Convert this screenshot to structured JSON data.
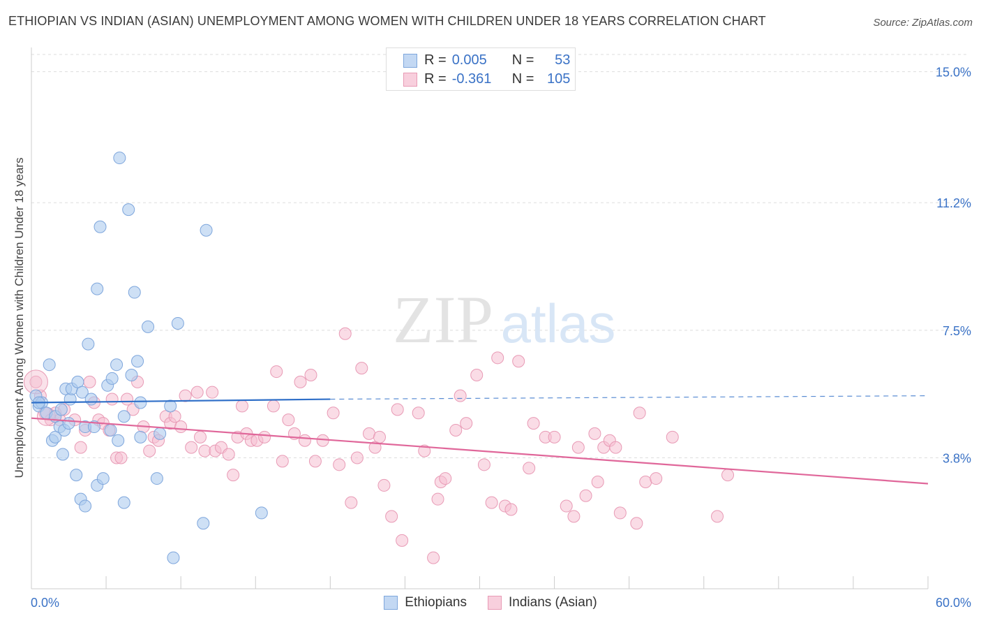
{
  "title": "ETHIOPIAN VS INDIAN (ASIAN) UNEMPLOYMENT AMONG WOMEN WITH CHILDREN UNDER 18 YEARS CORRELATION CHART",
  "source": "Source: ZipAtlas.com",
  "watermark": {
    "zip": "ZIP",
    "atlas": "atlas"
  },
  "colors": {
    "ethiopians_fill": "#aecbef",
    "ethiopians_stroke": "#7ea6dc",
    "ethiopians_line": "#2f6fc8",
    "indians_fill": "#f5bfd1",
    "indians_stroke": "#e89ab5",
    "indians_line": "#e0679a",
    "tick_label": "#3a72c6",
    "grid": "#dddddd"
  },
  "legend": {
    "rows": [
      {
        "r_label": "R =",
        "r_value": "0.005",
        "n_label": "N =",
        "n_value": "53"
      },
      {
        "r_label": "R =",
        "r_value": "-0.361",
        "n_label": "N =",
        "n_value": "105"
      }
    ]
  },
  "chart_data": {
    "type": "scatter",
    "title": "ETHIOPIAN VS INDIAN (ASIAN) UNEMPLOYMENT AMONG WOMEN WITH CHILDREN UNDER 18 YEARS CORRELATION CHART",
    "xlabel": "",
    "ylabel": "Unemployment Among Women with Children Under 18 years",
    "xlim": [
      0,
      60
    ],
    "ylim": [
      0,
      15.5
    ],
    "x_tick_labels": [
      "0.0%",
      "60.0%"
    ],
    "y_ticks": [
      3.8,
      7.5,
      11.2,
      15.0
    ],
    "y_tick_labels": [
      "3.8%",
      "7.5%",
      "11.2%",
      "15.0%"
    ],
    "grid": true,
    "legend_position": "bottom-center",
    "series": [
      {
        "name": "Ethiopians",
        "trend": {
          "x": [
            0,
            20
          ],
          "y": [
            5.4,
            5.5
          ],
          "dashed_to_x": 60,
          "dashed_to_y": 5.6
        },
        "points": [
          [
            0.3,
            5.6
          ],
          [
            0.5,
            5.3
          ],
          [
            0.7,
            5.4
          ],
          [
            1.0,
            5.1
          ],
          [
            1.2,
            6.5
          ],
          [
            1.4,
            4.3
          ],
          [
            1.6,
            4.4
          ],
          [
            1.6,
            5.0
          ],
          [
            1.9,
            4.7
          ],
          [
            2.0,
            5.2
          ],
          [
            2.1,
            3.9
          ],
          [
            2.2,
            4.6
          ],
          [
            2.3,
            5.8
          ],
          [
            2.5,
            4.8
          ],
          [
            2.6,
            5.5
          ],
          [
            2.7,
            5.8
          ],
          [
            3.0,
            3.3
          ],
          [
            3.1,
            6.0
          ],
          [
            3.3,
            2.6
          ],
          [
            3.4,
            5.7
          ],
          [
            3.6,
            2.4
          ],
          [
            3.6,
            4.7
          ],
          [
            3.8,
            7.1
          ],
          [
            4.0,
            5.5
          ],
          [
            4.2,
            4.7
          ],
          [
            4.4,
            8.7
          ],
          [
            4.6,
            10.5
          ],
          [
            4.4,
            3.0
          ],
          [
            4.8,
            3.2
          ],
          [
            5.1,
            5.9
          ],
          [
            5.3,
            4.6
          ],
          [
            5.4,
            6.1
          ],
          [
            5.7,
            6.5
          ],
          [
            5.8,
            4.3
          ],
          [
            5.9,
            12.5
          ],
          [
            6.2,
            2.5
          ],
          [
            6.2,
            5.0
          ],
          [
            6.5,
            11.0
          ],
          [
            6.7,
            6.2
          ],
          [
            6.9,
            8.6
          ],
          [
            7.1,
            6.6
          ],
          [
            7.3,
            5.4
          ],
          [
            7.3,
            4.4
          ],
          [
            7.8,
            7.6
          ],
          [
            8.4,
            3.2
          ],
          [
            8.6,
            4.5
          ],
          [
            9.3,
            5.3
          ],
          [
            9.5,
            0.9
          ],
          [
            9.8,
            7.7
          ],
          [
            11.5,
            1.9
          ],
          [
            11.7,
            10.4
          ],
          [
            15.4,
            2.2
          ],
          [
            0.5,
            5.4
          ]
        ]
      },
      {
        "name": "Indians (Asian)",
        "trend": {
          "x": [
            0,
            60
          ],
          "y": [
            4.95,
            3.05
          ]
        },
        "points": [
          [
            0.3,
            6.0
          ],
          [
            0.6,
            5.6
          ],
          [
            0.9,
            5.1
          ],
          [
            1.3,
            4.9
          ],
          [
            1.6,
            5.1
          ],
          [
            1.9,
            4.9
          ],
          [
            2.2,
            5.2
          ],
          [
            2.9,
            4.9
          ],
          [
            3.3,
            4.1
          ],
          [
            3.6,
            4.6
          ],
          [
            3.9,
            6.0
          ],
          [
            4.2,
            5.4
          ],
          [
            4.5,
            4.9
          ],
          [
            4.8,
            4.8
          ],
          [
            5.2,
            4.6
          ],
          [
            5.4,
            5.5
          ],
          [
            5.7,
            3.8
          ],
          [
            6.0,
            3.8
          ],
          [
            6.4,
            5.5
          ],
          [
            6.8,
            5.2
          ],
          [
            7.1,
            6.0
          ],
          [
            7.5,
            4.7
          ],
          [
            7.9,
            4.0
          ],
          [
            8.2,
            4.4
          ],
          [
            8.5,
            4.3
          ],
          [
            9.0,
            5.0
          ],
          [
            9.3,
            4.8
          ],
          [
            9.6,
            5.0
          ],
          [
            10.0,
            4.7
          ],
          [
            10.3,
            5.6
          ],
          [
            10.7,
            4.1
          ],
          [
            11.1,
            5.7
          ],
          [
            11.3,
            4.4
          ],
          [
            11.6,
            4.0
          ],
          [
            12.1,
            5.7
          ],
          [
            12.3,
            4.0
          ],
          [
            12.7,
            4.1
          ],
          [
            13.2,
            3.9
          ],
          [
            13.5,
            3.3
          ],
          [
            13.8,
            4.4
          ],
          [
            14.1,
            5.3
          ],
          [
            14.4,
            4.5
          ],
          [
            14.7,
            4.3
          ],
          [
            15.1,
            4.3
          ],
          [
            15.6,
            4.4
          ],
          [
            16.2,
            5.3
          ],
          [
            16.4,
            6.3
          ],
          [
            16.8,
            3.7
          ],
          [
            17.2,
            4.9
          ],
          [
            17.6,
            4.5
          ],
          [
            18.0,
            6.0
          ],
          [
            18.3,
            4.3
          ],
          [
            18.7,
            6.2
          ],
          [
            19.0,
            3.7
          ],
          [
            19.5,
            4.3
          ],
          [
            20.2,
            5.1
          ],
          [
            20.6,
            3.6
          ],
          [
            21.0,
            7.4
          ],
          [
            21.4,
            2.5
          ],
          [
            21.8,
            3.8
          ],
          [
            22.1,
            6.4
          ],
          [
            22.6,
            4.5
          ],
          [
            23.0,
            4.1
          ],
          [
            23.3,
            4.4
          ],
          [
            23.6,
            3.0
          ],
          [
            24.1,
            2.1
          ],
          [
            24.5,
            5.2
          ],
          [
            24.8,
            1.4
          ],
          [
            25.9,
            5.1
          ],
          [
            26.3,
            4.0
          ],
          [
            26.9,
            0.9
          ],
          [
            27.2,
            2.6
          ],
          [
            27.4,
            3.1
          ],
          [
            27.7,
            3.2
          ],
          [
            28.4,
            4.6
          ],
          [
            28.7,
            5.6
          ],
          [
            29.1,
            4.8
          ],
          [
            29.8,
            6.2
          ],
          [
            30.3,
            3.6
          ],
          [
            30.8,
            2.5
          ],
          [
            31.2,
            6.7
          ],
          [
            31.7,
            2.4
          ],
          [
            32.1,
            2.3
          ],
          [
            32.6,
            6.6
          ],
          [
            33.3,
            3.5
          ],
          [
            33.6,
            4.8
          ],
          [
            34.4,
            4.4
          ],
          [
            35.0,
            4.4
          ],
          [
            35.8,
            2.4
          ],
          [
            36.3,
            2.1
          ],
          [
            36.6,
            4.1
          ],
          [
            37.1,
            2.7
          ],
          [
            37.7,
            4.5
          ],
          [
            37.9,
            3.1
          ],
          [
            38.3,
            4.1
          ],
          [
            38.7,
            4.3
          ],
          [
            39.1,
            4.1
          ],
          [
            39.4,
            2.2
          ],
          [
            40.5,
            1.9
          ],
          [
            40.7,
            5.1
          ],
          [
            41.1,
            3.1
          ],
          [
            41.8,
            3.2
          ],
          [
            42.9,
            4.4
          ],
          [
            45.9,
            2.1
          ],
          [
            46.6,
            3.3
          ]
        ]
      }
    ]
  },
  "bottom_legend": {
    "items": [
      "Ethiopians",
      "Indians (Asian)"
    ]
  }
}
